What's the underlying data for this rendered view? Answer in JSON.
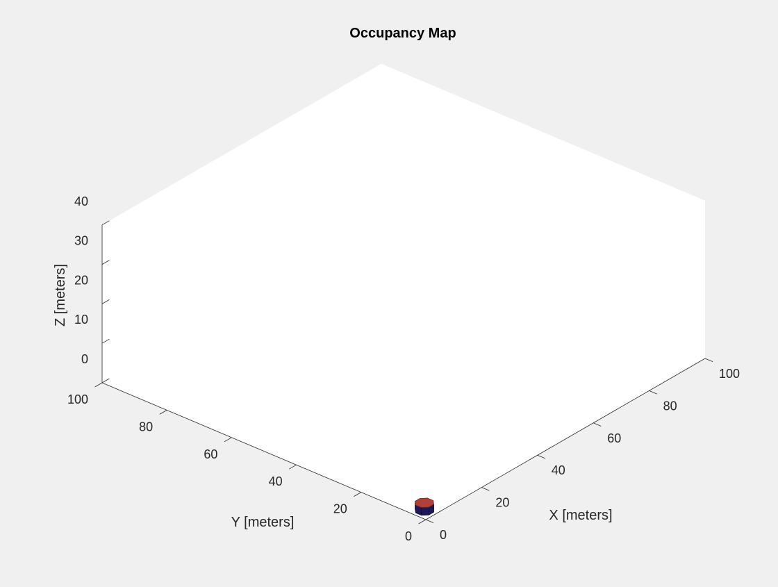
{
  "chart_data": {
    "type": "occupancy-map-3d",
    "title": "Occupancy Map",
    "xlabel": "X [meters]",
    "ylabel": "Y [meters]",
    "zlabel": "Z [meters]",
    "xlim": [
      0,
      100
    ],
    "ylim": [
      0,
      100
    ],
    "zlim": [
      0,
      40
    ],
    "xticks": [
      "0",
      "20",
      "40",
      "60",
      "80",
      "100"
    ],
    "yticks": [
      "0",
      "20",
      "40",
      "60",
      "80",
      "100"
    ],
    "zticks": [
      "0",
      "10",
      "20",
      "30",
      "40"
    ],
    "view": "isometric",
    "grid": false,
    "occupied_region": {
      "shape": "octagonal-prism",
      "center_x": 3,
      "center_y": 3,
      "radius": 2.3,
      "z_range": [
        0,
        2
      ]
    },
    "colors": {
      "figure_background": "#f0f0f0",
      "axes_background": "#ffffff",
      "occupied_top": "#b34036",
      "occupied_side": "#1d1a5c",
      "axis_color": "#262626"
    }
  }
}
